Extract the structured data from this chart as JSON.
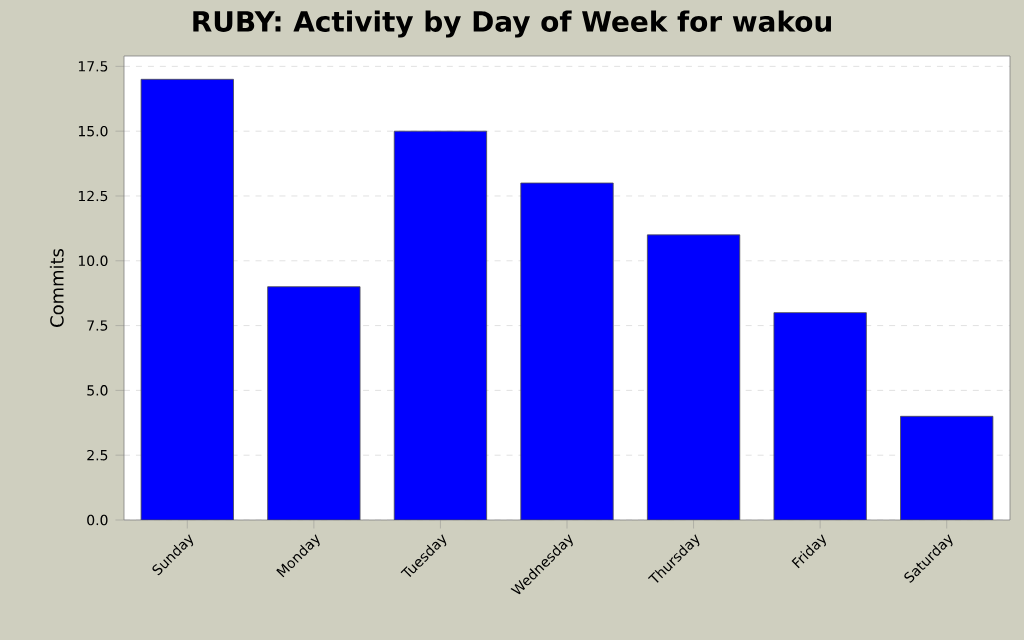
{
  "chart_data": {
    "type": "bar",
    "title": "RUBY: Activity by Day of Week for wakou",
    "ylabel": "Commits",
    "categories": [
      "Sunday",
      "Monday",
      "Tuesday",
      "Wednesday",
      "Thursday",
      "Friday",
      "Saturday"
    ],
    "values": [
      17,
      9,
      15,
      13,
      11,
      8,
      4
    ],
    "color": "#0000ff",
    "ylim": [
      0,
      17.9
    ],
    "yticks": [
      {
        "value": 0,
        "label": "0.0"
      },
      {
        "value": 2.5,
        "label": "2.5"
      },
      {
        "value": 5,
        "label": "5.0"
      },
      {
        "value": 7.5,
        "label": "7.5"
      },
      {
        "value": 10,
        "label": "10.0"
      },
      {
        "value": 12.5,
        "label": "12.5"
      },
      {
        "value": 15,
        "label": "15.0"
      },
      {
        "value": 17.5,
        "label": "17.5"
      }
    ],
    "grid": "y"
  }
}
